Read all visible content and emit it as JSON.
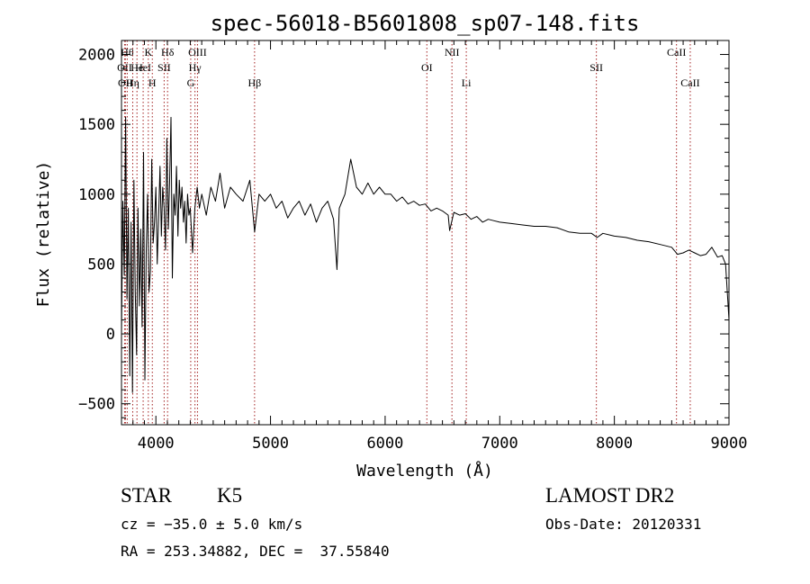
{
  "chart_data": {
    "type": "line",
    "title": "spec-56018-B5601808_sp07-148.fits",
    "xlabel": "Wavelength (Å)",
    "ylabel": "Flux (relative)",
    "xlim": [
      3700,
      9000
    ],
    "ylim": [
      -650,
      2100
    ],
    "xticks": [
      4000,
      5000,
      6000,
      7000,
      8000,
      9000
    ],
    "yticks": [
      -500,
      0,
      500,
      1000,
      1500,
      2000
    ],
    "grid": false,
    "series": [
      {
        "color": "#000000",
        "points": [
          [
            3700,
            0
          ],
          [
            3712,
            950
          ],
          [
            3724,
            420
          ],
          [
            3736,
            1550
          ],
          [
            3748,
            250
          ],
          [
            3760,
            900
          ],
          [
            3772,
            -300
          ],
          [
            3784,
            800
          ],
          [
            3796,
            -420
          ],
          [
            3808,
            1100
          ],
          [
            3820,
            300
          ],
          [
            3832,
            -150
          ],
          [
            3844,
            900
          ],
          [
            3856,
            200
          ],
          [
            3868,
            750
          ],
          [
            3880,
            50
          ],
          [
            3892,
            1300
          ],
          [
            3904,
            -330
          ],
          [
            3916,
            600
          ],
          [
            3928,
            1000
          ],
          [
            3940,
            300
          ],
          [
            3952,
            450
          ],
          [
            3964,
            1250
          ],
          [
            3976,
            650
          ],
          [
            3988,
            800
          ],
          [
            4000,
            1050
          ],
          [
            4012,
            500
          ],
          [
            4024,
            850
          ],
          [
            4036,
            1200
          ],
          [
            4048,
            700
          ],
          [
            4060,
            1050
          ],
          [
            4072,
            900
          ],
          [
            4084,
            600
          ],
          [
            4096,
            1400
          ],
          [
            4108,
            750
          ],
          [
            4120,
            1100
          ],
          [
            4132,
            1550
          ],
          [
            4144,
            400
          ],
          [
            4156,
            1000
          ],
          [
            4168,
            850
          ],
          [
            4180,
            1200
          ],
          [
            4192,
            700
          ],
          [
            4204,
            1100
          ],
          [
            4216,
            900
          ],
          [
            4228,
            1050
          ],
          [
            4240,
            800
          ],
          [
            4252,
            950
          ],
          [
            4264,
            650
          ],
          [
            4276,
            1000
          ],
          [
            4288,
            850
          ],
          [
            4300,
            900
          ],
          [
            4320,
            580
          ],
          [
            4340,
            900
          ],
          [
            4360,
            1050
          ],
          [
            4380,
            900
          ],
          [
            4400,
            1000
          ],
          [
            4440,
            850
          ],
          [
            4480,
            1050
          ],
          [
            4520,
            950
          ],
          [
            4560,
            1150
          ],
          [
            4600,
            900
          ],
          [
            4650,
            1050
          ],
          [
            4700,
            1000
          ],
          [
            4760,
            950
          ],
          [
            4820,
            1100
          ],
          [
            4861,
            730
          ],
          [
            4900,
            1000
          ],
          [
            4950,
            950
          ],
          [
            5000,
            1000
          ],
          [
            5050,
            900
          ],
          [
            5100,
            950
          ],
          [
            5150,
            830
          ],
          [
            5200,
            900
          ],
          [
            5250,
            950
          ],
          [
            5300,
            850
          ],
          [
            5350,
            930
          ],
          [
            5400,
            800
          ],
          [
            5450,
            900
          ],
          [
            5500,
            950
          ],
          [
            5550,
            820
          ],
          [
            5580,
            460
          ],
          [
            5600,
            900
          ],
          [
            5650,
            1000
          ],
          [
            5700,
            1250
          ],
          [
            5750,
            1050
          ],
          [
            5800,
            1000
          ],
          [
            5850,
            1080
          ],
          [
            5900,
            1000
          ],
          [
            5950,
            1050
          ],
          [
            6000,
            1000
          ],
          [
            6050,
            1000
          ],
          [
            6100,
            950
          ],
          [
            6150,
            980
          ],
          [
            6200,
            930
          ],
          [
            6250,
            950
          ],
          [
            6300,
            920
          ],
          [
            6350,
            930
          ],
          [
            6400,
            880
          ],
          [
            6450,
            900
          ],
          [
            6500,
            880
          ],
          [
            6550,
            850
          ],
          [
            6563,
            740
          ],
          [
            6600,
            870
          ],
          [
            6650,
            850
          ],
          [
            6700,
            860
          ],
          [
            6750,
            820
          ],
          [
            6800,
            840
          ],
          [
            6850,
            800
          ],
          [
            6900,
            820
          ],
          [
            6950,
            810
          ],
          [
            7000,
            800
          ],
          [
            7100,
            790
          ],
          [
            7200,
            780
          ],
          [
            7300,
            770
          ],
          [
            7400,
            770
          ],
          [
            7500,
            760
          ],
          [
            7600,
            730
          ],
          [
            7700,
            720
          ],
          [
            7800,
            720
          ],
          [
            7850,
            690
          ],
          [
            7900,
            720
          ],
          [
            8000,
            700
          ],
          [
            8100,
            690
          ],
          [
            8200,
            670
          ],
          [
            8300,
            660
          ],
          [
            8400,
            640
          ],
          [
            8500,
            620
          ],
          [
            8550,
            570
          ],
          [
            8600,
            580
          ],
          [
            8650,
            600
          ],
          [
            8700,
            580
          ],
          [
            8750,
            560
          ],
          [
            8800,
            570
          ],
          [
            8850,
            620
          ],
          [
            8900,
            550
          ],
          [
            8940,
            560
          ],
          [
            8970,
            500
          ],
          [
            8985,
            300
          ],
          [
            9000,
            100
          ]
        ]
      }
    ],
    "line_markers": [
      {
        "wavelength": 3727,
        "label": "OII",
        "row": 1
      },
      {
        "wavelength": 3734,
        "label": "OII",
        "row": 2
      },
      {
        "wavelength": 3750,
        "label": "Hθ",
        "row": 0
      },
      {
        "wavelength": 3798,
        "label": "Hη",
        "row": 2
      },
      {
        "wavelength": 3835,
        "label": "He",
        "row": 1
      },
      {
        "wavelength": 3889,
        "label": "HeI",
        "row": 1
      },
      {
        "wavelength": 3934,
        "label": "K",
        "row": 0
      },
      {
        "wavelength": 3969,
        "label": "H",
        "row": 2
      },
      {
        "wavelength": 4072,
        "label": "SII",
        "row": 1
      },
      {
        "wavelength": 4102,
        "label": "Hδ",
        "row": 0
      },
      {
        "wavelength": 4304,
        "label": "G",
        "row": 2
      },
      {
        "wavelength": 4341,
        "label": "Hγ",
        "row": 1
      },
      {
        "wavelength": 4363,
        "label": "OIII",
        "row": 0
      },
      {
        "wavelength": 4861,
        "label": "Hβ",
        "row": 2
      },
      {
        "wavelength": 6364,
        "label": "OI",
        "row": 1
      },
      {
        "wavelength": 6583,
        "label": "NII",
        "row": 0
      },
      {
        "wavelength": 6708,
        "label": "Li",
        "row": 2
      },
      {
        "wavelength": 7843,
        "label": "SII",
        "row": 1
      },
      {
        "wavelength": 8542,
        "label": "CaII",
        "row": 0
      },
      {
        "wavelength": 8662,
        "label": "CaII",
        "row": 2
      }
    ],
    "colors": {
      "spectrum": "#000000",
      "markers": "#a32020",
      "axes": "#000000"
    }
  },
  "info": {
    "class": "STAR",
    "subclass": "K5",
    "survey": "LAMOST DR2",
    "cz": "cz = −35.0 ± 5.0 km/s",
    "obs_date": "Obs-Date: 20120331",
    "coords": "RA = 253.34882, DEC =  37.55840"
  }
}
